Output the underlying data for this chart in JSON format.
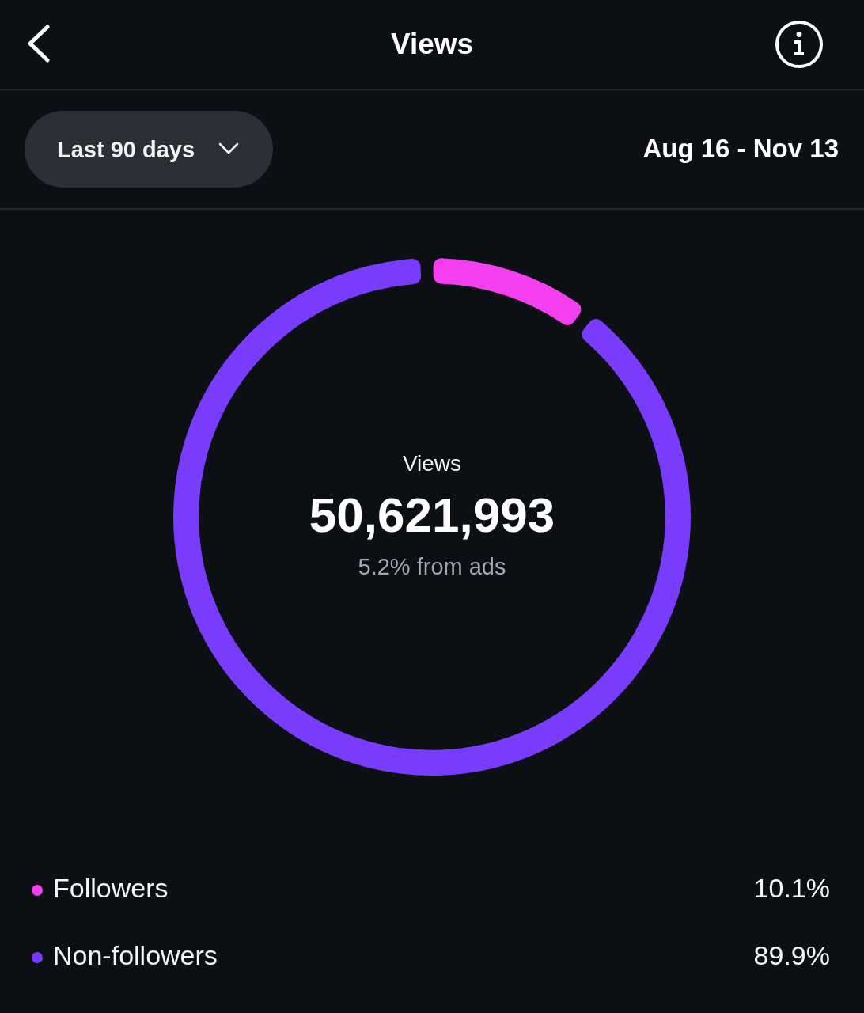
{
  "chart_data": {
    "type": "donut",
    "title": "Views",
    "subtitle": "Aug 16 - Nov 13",
    "annotations": [
      "Last 90 days",
      "Views",
      "50,621,993",
      "5.2% from ads"
    ],
    "categories": [
      "Followers",
      "Non-followers"
    ],
    "values": [
      10.1,
      89.9
    ],
    "colors": [
      "#f43ff0",
      "#7a3cfc"
    ],
    "value_labels": [
      "10.1%",
      "89.9%"
    ],
    "legend": "bottom"
  }
}
